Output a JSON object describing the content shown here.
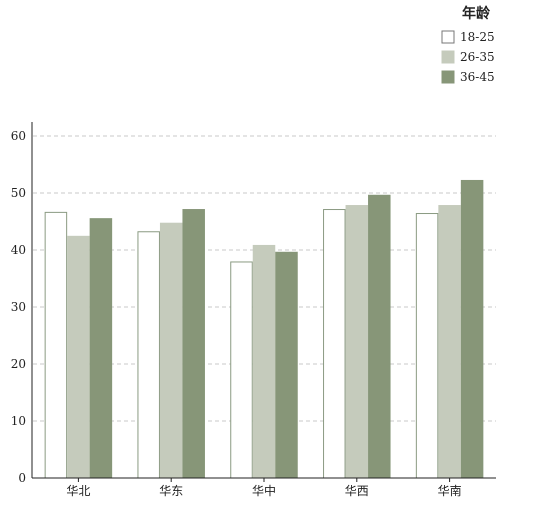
{
  "chart_data": {
    "type": "bar",
    "categories": [
      "华北",
      "华东",
      "华中",
      "华西",
      "华南"
    ],
    "legend": {
      "title": "年龄",
      "position": "top-right"
    },
    "series": [
      {
        "name": "18-25",
        "color": "#ffffff",
        "stroke": "#8a9a82",
        "values": [
          46.6,
          43.2,
          37.9,
          47.1,
          46.4
        ]
      },
      {
        "name": "26-35",
        "color": "#c5cbbc",
        "stroke": "#c5cbbc",
        "values": [
          42.4,
          44.7,
          40.8,
          47.8,
          47.8
        ]
      },
      {
        "name": "36-45",
        "color": "#879678",
        "stroke": "#879678",
        "values": [
          45.5,
          47.1,
          39.6,
          49.6,
          52.2
        ]
      }
    ],
    "ylim": [
      0,
      60
    ],
    "yticks": [
      "0",
      "10",
      "20",
      "30",
      "40",
      "50",
      "60"
    ],
    "grid": true,
    "xlabel": "",
    "ylabel": "",
    "title": ""
  }
}
